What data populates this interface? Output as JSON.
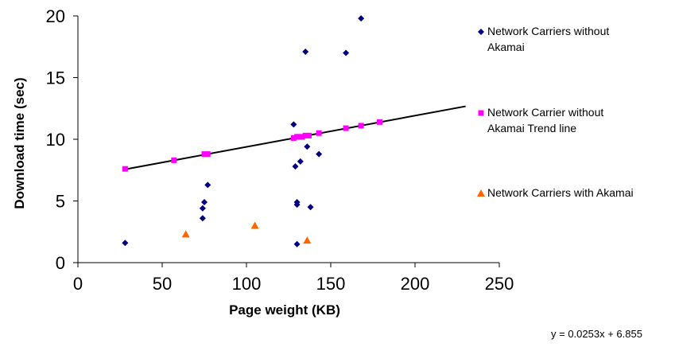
{
  "chart_data": {
    "type": "scatter",
    "title": "",
    "xlabel": "Page weight (KB)",
    "ylabel": "Download time (sec)",
    "xlim": [
      0,
      250
    ],
    "ylim": [
      0,
      20
    ],
    "x_ticks": [
      "0",
      "50",
      "100",
      "150",
      "200",
      "250"
    ],
    "y_ticks": [
      "0",
      "5",
      "10",
      "15",
      "20"
    ],
    "grid": false,
    "legend_position": "right",
    "series": [
      {
        "name": "Network Carriers without Akamai",
        "legend_lines": [
          "Network Carriers without",
          "Akamai"
        ],
        "marker": "diamond",
        "color": "#000080",
        "points": [
          [
            28,
            1.6
          ],
          [
            74,
            3.6
          ],
          [
            74,
            4.4
          ],
          [
            75,
            4.9
          ],
          [
            77,
            6.3
          ],
          [
            128,
            11.2
          ],
          [
            129,
            7.8
          ],
          [
            130,
            4.9
          ],
          [
            130,
            4.7
          ],
          [
            130,
            1.5
          ],
          [
            132,
            8.2
          ],
          [
            135,
            17.1
          ],
          [
            136,
            9.4
          ],
          [
            138,
            4.5
          ],
          [
            143,
            8.8
          ],
          [
            159,
            17.0
          ],
          [
            168,
            19.8
          ]
        ]
      },
      {
        "name": "Network Carrier without Akamai Trend line",
        "legend_lines": [
          "Network Carrier without",
          "Akamai Trend line"
        ],
        "marker": "square",
        "color": "#ff00ff",
        "points": [
          [
            28,
            7.6
          ],
          [
            57,
            8.3
          ],
          [
            75,
            8.8
          ],
          [
            77,
            8.8
          ],
          [
            128,
            10.1
          ],
          [
            130,
            10.2
          ],
          [
            131,
            10.2
          ],
          [
            133,
            10.2
          ],
          [
            135,
            10.3
          ],
          [
            137,
            10.3
          ],
          [
            143,
            10.5
          ],
          [
            159,
            10.9
          ],
          [
            168,
            11.1
          ],
          [
            179,
            11.4
          ]
        ]
      },
      {
        "name": "Network Carriers with Akamai",
        "legend_lines": [
          "Network Carriers with Akamai"
        ],
        "marker": "triangle",
        "color": "#ff6600",
        "points": [
          [
            64,
            2.3
          ],
          [
            105,
            3.0
          ],
          [
            136,
            1.8
          ]
        ]
      }
    ],
    "trendline": {
      "slope": 0.0253,
      "intercept": 6.855,
      "x_range": [
        28,
        230
      ],
      "color": "#000000",
      "equation": "y = 0.0253x + 6.855"
    }
  }
}
